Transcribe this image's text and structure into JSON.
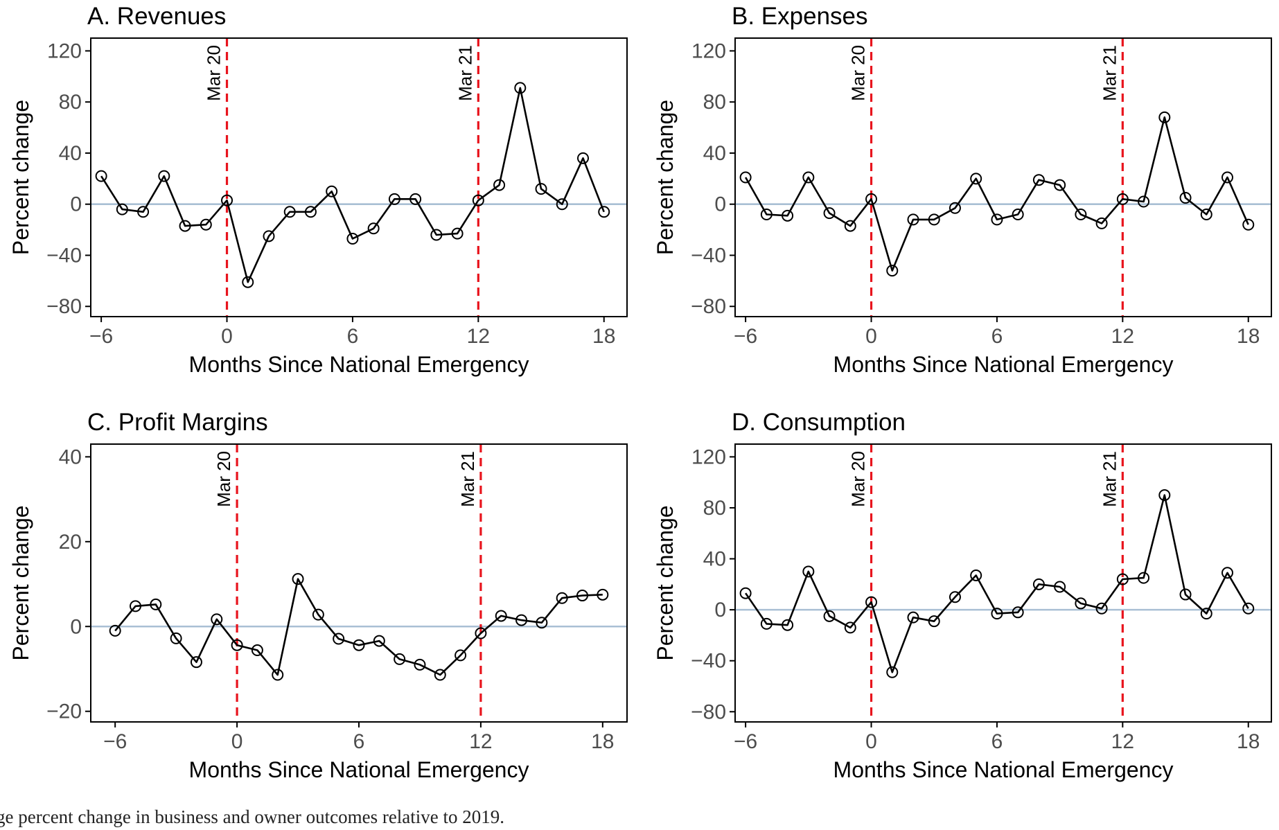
{
  "caption": "ge percent change in business and owner outcomes relative to 2019.",
  "chart_data": [
    {
      "type": "line",
      "title": "A. Revenues",
      "xlabel": "Months Since National Emergency",
      "ylabel": "Percent change",
      "xlim": [
        -6.5,
        19.1
      ],
      "ylim": [
        -88,
        130
      ],
      "xticks": [
        -6,
        0,
        6,
        12,
        18
      ],
      "xtick_labels": [
        "−6",
        "0",
        "6",
        "12",
        "18"
      ],
      "yticks": [
        -80,
        -40,
        0,
        40,
        80,
        120
      ],
      "ytick_labels": [
        "−80",
        "−40",
        "0",
        "40",
        "80",
        "120"
      ],
      "reference_line": 0,
      "events": [
        {
          "x": 0,
          "label": "Mar 20"
        },
        {
          "x": 12,
          "label": "Mar 21"
        }
      ],
      "x": [
        -6,
        -5,
        -4,
        -3,
        -2,
        -1,
        0,
        1,
        2,
        3,
        4,
        5,
        6,
        7,
        8,
        9,
        10,
        11,
        12,
        13,
        14,
        15,
        16,
        17,
        18
      ],
      "values": [
        22,
        -4,
        -6,
        22,
        -17,
        -16,
        3,
        -61,
        -25,
        -6,
        -6,
        10,
        -27,
        -19,
        4,
        4,
        -24,
        -23,
        3,
        15,
        91,
        12,
        0,
        36,
        -6
      ]
    },
    {
      "type": "line",
      "title": "B. Expenses",
      "xlabel": "Months Since National Emergency",
      "ylabel": "Percent change",
      "xlim": [
        -6.5,
        19.1
      ],
      "ylim": [
        -88,
        130
      ],
      "xticks": [
        -6,
        0,
        6,
        12,
        18
      ],
      "xtick_labels": [
        "−6",
        "0",
        "6",
        "12",
        "18"
      ],
      "yticks": [
        -80,
        -40,
        0,
        40,
        80,
        120
      ],
      "ytick_labels": [
        "−80",
        "−40",
        "0",
        "40",
        "80",
        "120"
      ],
      "reference_line": 0,
      "events": [
        {
          "x": 0,
          "label": "Mar 20"
        },
        {
          "x": 12,
          "label": "Mar 21"
        }
      ],
      "x": [
        -6,
        -5,
        -4,
        -3,
        -2,
        -1,
        0,
        1,
        2,
        3,
        4,
        5,
        6,
        7,
        8,
        9,
        10,
        11,
        12,
        13,
        14,
        15,
        16,
        17,
        18
      ],
      "values": [
        21,
        -8,
        -9,
        21,
        -7,
        -17,
        4,
        -52,
        -12,
        -12,
        -3,
        20,
        -12,
        -8,
        19,
        15,
        -8,
        -15,
        4,
        2,
        68,
        5,
        -8,
        21,
        -16
      ]
    },
    {
      "type": "line",
      "title": "C. Profit Margins",
      "xlabel": "Months Since National Emergency",
      "ylabel": "Percent change",
      "xlim": [
        -7.2,
        19.2
      ],
      "ylim": [
        -22.5,
        43
      ],
      "xticks": [
        -6,
        0,
        6,
        12,
        18
      ],
      "xtick_labels": [
        "−6",
        "0",
        "6",
        "12",
        "18"
      ],
      "yticks": [
        -20,
        0,
        20,
        40
      ],
      "ytick_labels": [
        "−20",
        "0",
        "20",
        "40"
      ],
      "reference_line": 0,
      "events": [
        {
          "x": 0,
          "label": "Mar 20"
        },
        {
          "x": 12,
          "label": "Mar 21"
        }
      ],
      "x": [
        -6,
        -5,
        -4,
        -3,
        -2,
        -1,
        0,
        1,
        2,
        3,
        4,
        5,
        6,
        7,
        8,
        9,
        10,
        11,
        12,
        13,
        14,
        15,
        16,
        17,
        18
      ],
      "values": [
        -1,
        4.8,
        5.2,
        -2.8,
        -8.4,
        1.7,
        -4.4,
        -5.6,
        -11.4,
        11.2,
        2.8,
        -2.9,
        -4.4,
        -3.4,
        -7.7,
        -9,
        -11.4,
        -6.8,
        -1.6,
        2.5,
        1.5,
        0.9,
        6.7,
        7.3,
        7.5
      ]
    },
    {
      "type": "line",
      "title": "D. Consumption",
      "xlabel": "Months Since National Emergency",
      "ylabel": "Percent change",
      "xlim": [
        -6.5,
        19.1
      ],
      "ylim": [
        -88,
        130
      ],
      "xticks": [
        -6,
        0,
        6,
        12,
        18
      ],
      "xtick_labels": [
        "−6",
        "0",
        "6",
        "12",
        "18"
      ],
      "yticks": [
        -80,
        -40,
        0,
        40,
        80,
        120
      ],
      "ytick_labels": [
        "−80",
        "−40",
        "0",
        "40",
        "80",
        "120"
      ],
      "reference_line": 0,
      "events": [
        {
          "x": 0,
          "label": "Mar 20"
        },
        {
          "x": 12,
          "label": "Mar 21"
        }
      ],
      "x": [
        -6,
        -5,
        -4,
        -3,
        -2,
        -1,
        0,
        1,
        2,
        3,
        4,
        5,
        6,
        7,
        8,
        9,
        10,
        11,
        12,
        13,
        14,
        15,
        16,
        17,
        18
      ],
      "values": [
        13,
        -11,
        -12,
        30,
        -5,
        -14,
        6,
        -49,
        -6,
        -9,
        10,
        27,
        -3,
        -2,
        20,
        18,
        5,
        1,
        24,
        25,
        90,
        12,
        -3,
        29,
        1
      ]
    }
  ],
  "style": {
    "line_color": "#000000",
    "marker_color": "#000000",
    "event_line_color": "#e8141d",
    "reference_line_color": "#a9bfd4",
    "axis_color": "#000000",
    "tick_label_color": "#4d4d4d"
  }
}
